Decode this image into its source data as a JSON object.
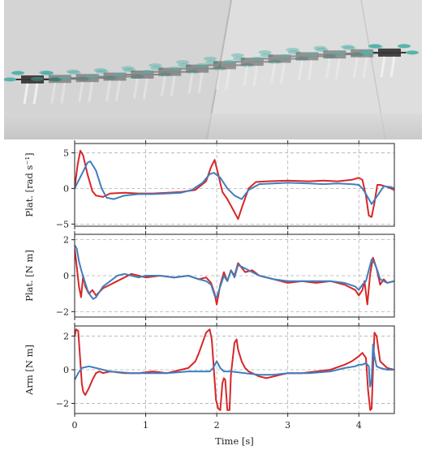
{
  "photo": {
    "description_icon": "drone-long-exposure-photo"
  },
  "colors": {
    "series_a": "#d62728",
    "series_b": "#3f7fbf",
    "grid": "#b0b0b0"
  },
  "chart_data": [
    {
      "type": "line",
      "ylabel": "Plat. [rad s⁻¹]",
      "xlim": [
        0,
        4.5
      ],
      "ylim": [
        -5.3,
        6.3
      ],
      "yticks": [
        5,
        0,
        -5
      ],
      "ytick_labels": [
        "5",
        "0",
        "−5"
      ],
      "grid": true,
      "series": [
        {
          "color": "#d62728",
          "x": [
            0,
            0.04,
            0.08,
            0.12,
            0.18,
            0.25,
            0.3,
            0.4,
            0.5,
            0.7,
            0.9,
            1.1,
            1.3,
            1.5,
            1.7,
            1.85,
            1.92,
            1.97,
            2.02,
            2.08,
            2.15,
            2.22,
            2.3,
            2.36,
            2.45,
            2.55,
            2.7,
            3.0,
            3.3,
            3.5,
            3.7,
            3.9,
            4.0,
            4.05,
            4.1,
            4.14,
            4.18,
            4.22,
            4.26,
            4.3,
            4.4,
            4.5
          ],
          "y": [
            0,
            3.2,
            5.3,
            4.6,
            2.0,
            -0.4,
            -1.0,
            -1.2,
            -0.7,
            -0.6,
            -0.7,
            -0.7,
            -0.6,
            -0.5,
            -0.2,
            1.0,
            3.0,
            4.0,
            2.0,
            -0.5,
            -1.5,
            -2.8,
            -4.3,
            -2.5,
            0.0,
            0.9,
            1.0,
            1.1,
            1.0,
            1.1,
            1.0,
            1.2,
            1.5,
            1.2,
            -1.0,
            -3.8,
            -4.0,
            -2.0,
            0.5,
            0.5,
            0.2,
            -0.2
          ]
        },
        {
          "color": "#3f7fbf",
          "x": [
            0,
            0.1,
            0.18,
            0.22,
            0.3,
            0.38,
            0.45,
            0.55,
            0.7,
            0.9,
            1.1,
            1.3,
            1.5,
            1.65,
            1.8,
            1.9,
            1.96,
            2.05,
            2.15,
            2.25,
            2.35,
            2.45,
            2.6,
            2.8,
            3.0,
            3.3,
            3.5,
            3.7,
            3.9,
            4.0,
            4.05,
            4.1,
            4.18,
            4.25,
            4.35,
            4.45,
            4.5
          ],
          "y": [
            0,
            2.0,
            3.6,
            3.8,
            2.5,
            0.0,
            -1.3,
            -1.5,
            -1.0,
            -0.8,
            -0.8,
            -0.7,
            -0.6,
            -0.2,
            0.8,
            2.0,
            2.2,
            1.5,
            0.0,
            -1.0,
            -1.5,
            -0.2,
            0.6,
            0.7,
            0.8,
            0.7,
            0.6,
            0.7,
            0.6,
            0.5,
            0.0,
            -0.8,
            -2.2,
            -1.2,
            0.3,
            0.2,
            0.0
          ]
        }
      ]
    },
    {
      "type": "line",
      "ylabel": "Plat. [N m]",
      "xlim": [
        0,
        4.5
      ],
      "ylim": [
        -2.3,
        2.3
      ],
      "yticks": [
        2,
        0,
        -2
      ],
      "ytick_labels": [
        "2",
        "0",
        "−2"
      ],
      "grid": true,
      "series": [
        {
          "color": "#d62728",
          "x": [
            0,
            0.03,
            0.06,
            0.09,
            0.12,
            0.15,
            0.2,
            0.25,
            0.3,
            0.35,
            0.4,
            0.5,
            0.6,
            0.7,
            0.8,
            0.9,
            1.0,
            1.2,
            1.4,
            1.6,
            1.75,
            1.85,
            1.92,
            1.97,
            2.0,
            2.05,
            2.1,
            2.15,
            2.2,
            2.25,
            2.3,
            2.4,
            2.5,
            2.6,
            2.8,
            3.0,
            3.2,
            3.4,
            3.6,
            3.8,
            3.95,
            4.0,
            4.05,
            4.08,
            4.12,
            4.16,
            4.2,
            4.25,
            4.3,
            4.35,
            4.4,
            4.5
          ],
          "y": [
            1.5,
            0.5,
            -0.6,
            -1.2,
            0.0,
            -0.6,
            -1.0,
            -0.8,
            -1.1,
            -0.9,
            -0.7,
            -0.5,
            -0.3,
            -0.1,
            0.1,
            0.0,
            -0.1,
            0.0,
            -0.1,
            0.0,
            -0.2,
            -0.1,
            -0.4,
            -1.0,
            -1.6,
            -0.5,
            0.2,
            -0.3,
            0.3,
            0.0,
            0.7,
            0.2,
            0.3,
            0.0,
            -0.2,
            -0.4,
            -0.3,
            -0.4,
            -0.3,
            -0.5,
            -0.8,
            -1.1,
            -0.8,
            -0.3,
            -1.6,
            0.1,
            1.0,
            0.4,
            -0.5,
            -0.2,
            -0.4,
            -0.3
          ]
        },
        {
          "color": "#3f7fbf",
          "x": [
            0,
            0.03,
            0.06,
            0.1,
            0.14,
            0.18,
            0.22,
            0.26,
            0.3,
            0.35,
            0.4,
            0.5,
            0.6,
            0.7,
            0.8,
            0.9,
            1.0,
            1.2,
            1.4,
            1.6,
            1.75,
            1.85,
            1.92,
            1.97,
            2.0,
            2.05,
            2.1,
            2.15,
            2.2,
            2.25,
            2.3,
            2.4,
            2.5,
            2.6,
            2.8,
            3.0,
            3.2,
            3.4,
            3.6,
            3.8,
            3.95,
            4.0,
            4.05,
            4.1,
            4.14,
            4.18,
            4.22,
            4.26,
            4.3,
            4.35,
            4.4,
            4.5
          ],
          "y": [
            1.7,
            1.5,
            0.8,
            0.2,
            -0.3,
            -0.8,
            -1.1,
            -1.3,
            -1.2,
            -0.9,
            -0.6,
            -0.3,
            0.0,
            0.1,
            0.0,
            -0.1,
            0.0,
            0.0,
            -0.1,
            0.0,
            -0.2,
            -0.3,
            -0.5,
            -1.1,
            -1.2,
            -0.6,
            0.0,
            -0.3,
            0.3,
            -0.1,
            0.6,
            0.4,
            0.2,
            0.0,
            -0.2,
            -0.3,
            -0.3,
            -0.3,
            -0.3,
            -0.4,
            -0.6,
            -0.8,
            -0.5,
            -0.3,
            0.3,
            0.9,
            0.7,
            0.3,
            -0.2,
            -0.3,
            -0.4,
            -0.3
          ]
        }
      ]
    },
    {
      "type": "line",
      "ylabel": "Arm [N m]",
      "xlabel": "Time [s]",
      "xlim": [
        0,
        4.5
      ],
      "xticks": [
        0,
        1,
        2,
        3,
        4
      ],
      "xtick_labels": [
        "0",
        "1",
        "2",
        "3",
        "4"
      ],
      "ylim": [
        -2.6,
        2.6
      ],
      "yticks": [
        2,
        0,
        -2
      ],
      "ytick_labels": [
        "2",
        "0",
        "−2"
      ],
      "grid": true,
      "series": [
        {
          "color": "#d62728",
          "x": [
            0,
            0.02,
            0.05,
            0.08,
            0.1,
            0.12,
            0.15,
            0.2,
            0.25,
            0.3,
            0.35,
            0.4,
            0.5,
            0.7,
            0.9,
            1.1,
            1.3,
            1.5,
            1.6,
            1.7,
            1.75,
            1.8,
            1.85,
            1.9,
            1.93,
            1.96,
            1.99,
            2.02,
            2.05,
            2.08,
            2.1,
            2.12,
            2.15,
            2.18,
            2.2,
            2.25,
            2.28,
            2.3,
            2.35,
            2.4,
            2.45,
            2.5,
            2.6,
            2.7,
            2.8,
            2.9,
            3.0,
            3.2,
            3.4,
            3.6,
            3.8,
            3.9,
            4.0,
            4.05,
            4.1,
            4.13,
            4.16,
            4.18,
            4.2,
            4.22,
            4.25,
            4.3,
            4.4,
            4.5
          ],
          "y": [
            2.0,
            2.4,
            2.3,
            0.5,
            -0.8,
            -1.3,
            -1.5,
            -1.1,
            -0.6,
            -0.2,
            -0.1,
            -0.2,
            -0.1,
            -0.2,
            -0.2,
            -0.1,
            -0.2,
            0.0,
            0.1,
            0.5,
            1.0,
            1.6,
            2.2,
            2.4,
            1.8,
            0.0,
            -1.8,
            -2.3,
            -2.4,
            -0.8,
            -0.5,
            -0.6,
            -2.4,
            -2.4,
            -0.3,
            1.6,
            1.8,
            1.2,
            0.5,
            0.1,
            -0.1,
            -0.2,
            -0.4,
            -0.5,
            -0.4,
            -0.3,
            -0.2,
            -0.2,
            -0.1,
            0.0,
            0.3,
            0.5,
            0.8,
            1.0,
            0.7,
            -1.2,
            -2.4,
            -2.3,
            0.0,
            2.2,
            2.0,
            0.5,
            0.1,
            0.0
          ]
        },
        {
          "color": "#3f7fbf",
          "x": [
            0,
            0.05,
            0.1,
            0.2,
            0.3,
            0.5,
            0.8,
            1.0,
            1.3,
            1.6,
            1.8,
            1.9,
            1.95,
            2.0,
            2.05,
            2.1,
            2.2,
            2.4,
            2.6,
            2.8,
            3.0,
            3.3,
            3.6,
            3.8,
            3.95,
            4.0,
            4.05,
            4.1,
            4.14,
            4.16,
            4.18,
            4.2,
            4.22,
            4.25,
            4.3,
            4.4,
            4.5
          ],
          "y": [
            -0.6,
            -0.2,
            0.1,
            0.2,
            0.1,
            -0.1,
            -0.2,
            -0.2,
            -0.2,
            -0.1,
            -0.1,
            -0.1,
            0.1,
            0.5,
            0.1,
            -0.1,
            -0.1,
            -0.2,
            -0.3,
            -0.3,
            -0.2,
            -0.2,
            -0.1,
            0.1,
            0.2,
            0.3,
            0.3,
            0.4,
            0.2,
            -1.0,
            -0.6,
            1.5,
            0.8,
            0.2,
            0.1,
            0.0,
            0.0
          ]
        }
      ]
    }
  ]
}
